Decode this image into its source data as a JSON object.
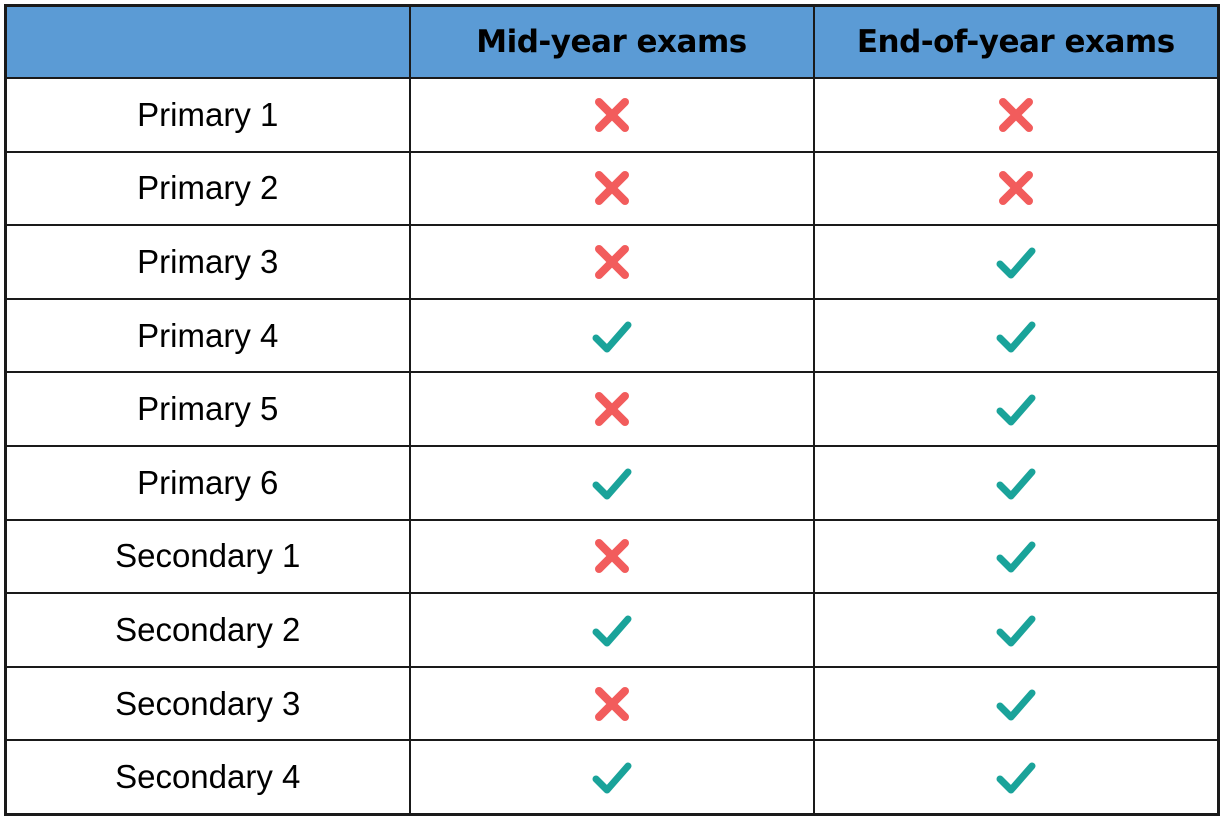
{
  "header": {
    "corner": "",
    "col1": "Mid-year exams",
    "col2": "End-of-year exams"
  },
  "colors": {
    "header_bg": "#5b9bd5",
    "check": "#1aa39a",
    "cross": "#f25c5c"
  },
  "rows": [
    {
      "level": "Primary 1",
      "mid_year": "cross",
      "end_of_year": "cross"
    },
    {
      "level": "Primary 2",
      "mid_year": "cross",
      "end_of_year": "cross"
    },
    {
      "level": "Primary 3",
      "mid_year": "cross",
      "end_of_year": "check"
    },
    {
      "level": "Primary 4",
      "mid_year": "check",
      "end_of_year": "check"
    },
    {
      "level": "Primary 5",
      "mid_year": "cross",
      "end_of_year": "check"
    },
    {
      "level": "Primary 6",
      "mid_year": "check",
      "end_of_year": "check"
    },
    {
      "level": "Secondary 1",
      "mid_year": "cross",
      "end_of_year": "check"
    },
    {
      "level": "Secondary 2",
      "mid_year": "check",
      "end_of_year": "check"
    },
    {
      "level": "Secondary 3",
      "mid_year": "cross",
      "end_of_year": "check"
    },
    {
      "level": "Secondary 4",
      "mid_year": "check",
      "end_of_year": "check"
    }
  ]
}
